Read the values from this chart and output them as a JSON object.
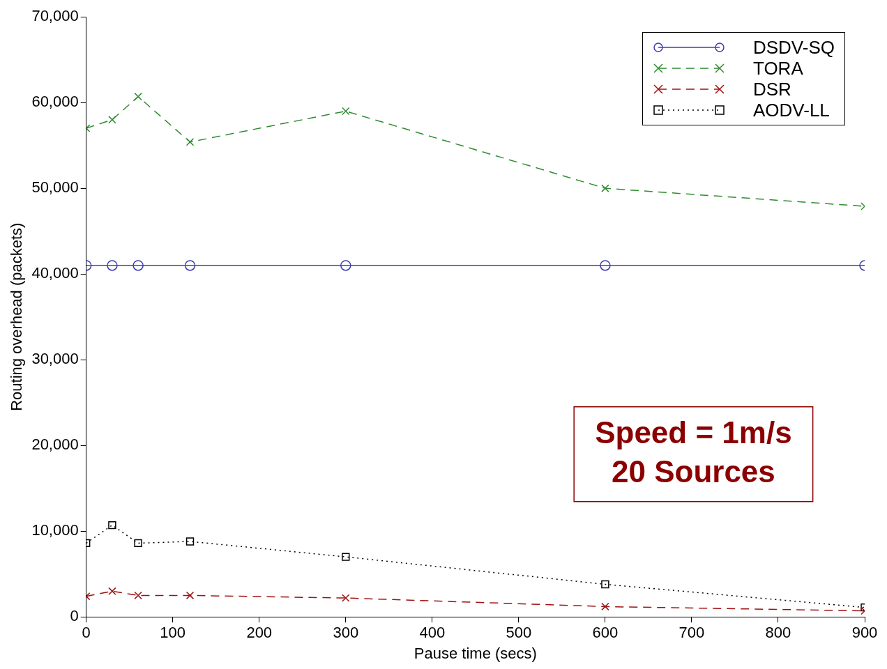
{
  "chart_data": {
    "type": "line",
    "xlabel": "Pause time (secs)",
    "ylabel": "Routing overhead (packets)",
    "x": [
      0,
      30,
      60,
      120,
      300,
      600,
      900
    ],
    "series": [
      {
        "name": "DSDV-SQ",
        "color": "#3c3cb4",
        "marker": "circle",
        "line_style": "solid",
        "values": [
          41000,
          41000,
          41000,
          41000,
          41000,
          41000,
          41000
        ]
      },
      {
        "name": "TORA",
        "color": "#2e8b2e",
        "marker": "cross",
        "line_style": "dashed",
        "values": [
          57000,
          58000,
          60700,
          55400,
          59000,
          50000,
          47900
        ]
      },
      {
        "name": "DSR",
        "color": "#a01010",
        "marker": "cross",
        "line_style": "dashed",
        "values": [
          2400,
          3000,
          2500,
          2500,
          2200,
          1200,
          700
        ]
      },
      {
        "name": "AODV-LL",
        "color": "#000000",
        "marker": "square",
        "line_style": "dotted",
        "values": [
          8600,
          10700,
          8600,
          8800,
          7000,
          3800,
          1100
        ]
      }
    ],
    "xlim": [
      0,
      900
    ],
    "xticks": [
      0,
      100,
      200,
      300,
      400,
      500,
      600,
      700,
      800,
      900
    ],
    "ylim": [
      0,
      70000
    ],
    "yticks": [
      0,
      {
        "value": 10000,
        "label": "10,000"
      },
      {
        "value": 20000,
        "label": "20,000"
      },
      {
        "value": 30000,
        "label": "30,000"
      },
      {
        "value": 40000,
        "label": "40,000"
      },
      {
        "value": 50000,
        "label": "50,000"
      },
      {
        "value": 60000,
        "label": "60,000"
      },
      {
        "value": 70000,
        "label": "70,000"
      }
    ],
    "grid": false,
    "legend": "top right",
    "annotations": [
      "Speed = 1m/s",
      "20 Sources"
    ]
  }
}
